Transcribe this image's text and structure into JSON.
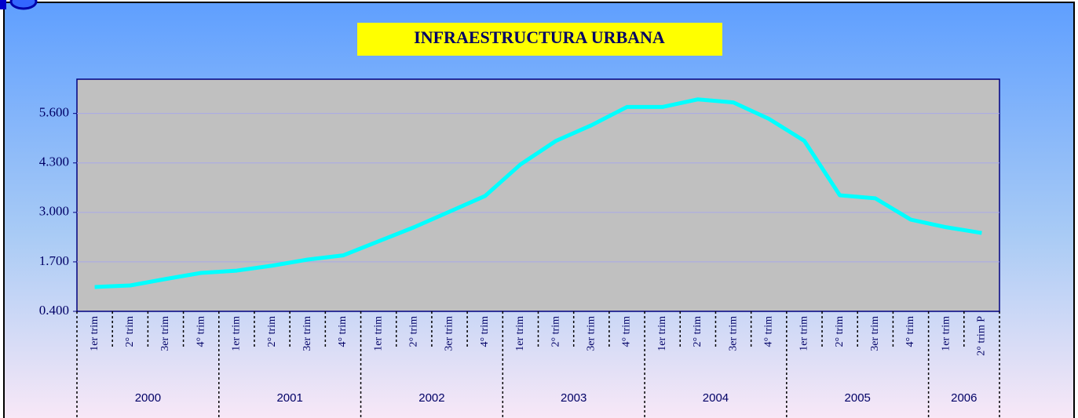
{
  "chart_data": {
    "type": "line",
    "title": "INFRAESTRUCTURA URBANA",
    "categories": [
      "1er trim",
      "2° trim",
      "3er trim",
      "4° trim",
      "1er trim",
      "2° trim",
      "3er trim",
      "4° trim",
      "1er trim",
      "2° trim",
      "3er trim",
      "4° trim",
      "1er trim",
      "2° trim",
      "3er trim",
      "4° trim",
      "1er trim",
      "2° trim",
      "3er trim",
      "4° trim",
      "1er trim",
      "2° trim",
      "3er trim",
      "4° trim",
      "1er trim",
      "2° trim P"
    ],
    "category_groups": [
      {
        "label": "2000",
        "size": 4
      },
      {
        "label": "2001",
        "size": 4
      },
      {
        "label": "2002",
        "size": 4
      },
      {
        "label": "2003",
        "size": 4
      },
      {
        "label": "2004",
        "size": 4
      },
      {
        "label": "2005",
        "size": 4
      },
      {
        "label": "2006",
        "size": 2
      }
    ],
    "series": [
      {
        "name": "Infraestructura urbana",
        "color": "#00ffff",
        "values": [
          1.04,
          1.08,
          1.25,
          1.41,
          1.47,
          1.6,
          1.76,
          1.87,
          2.24,
          2.61,
          3.02,
          3.43,
          4.26,
          4.88,
          5.29,
          5.77,
          5.77,
          5.97,
          5.89,
          5.46,
          4.88,
          3.45,
          3.37,
          2.81,
          2.61,
          2.46
        ]
      }
    ],
    "ylim": [
      0.4,
      6.5
    ],
    "yticks": [
      {
        "value": 0.4,
        "label": "0.400"
      },
      {
        "value": 1.7,
        "label": "1.700"
      },
      {
        "value": 3.0,
        "label": "3.000"
      },
      {
        "value": 4.3,
        "label": "4.300"
      },
      {
        "value": 5.6,
        "label": "5.600"
      }
    ],
    "grid": true
  }
}
